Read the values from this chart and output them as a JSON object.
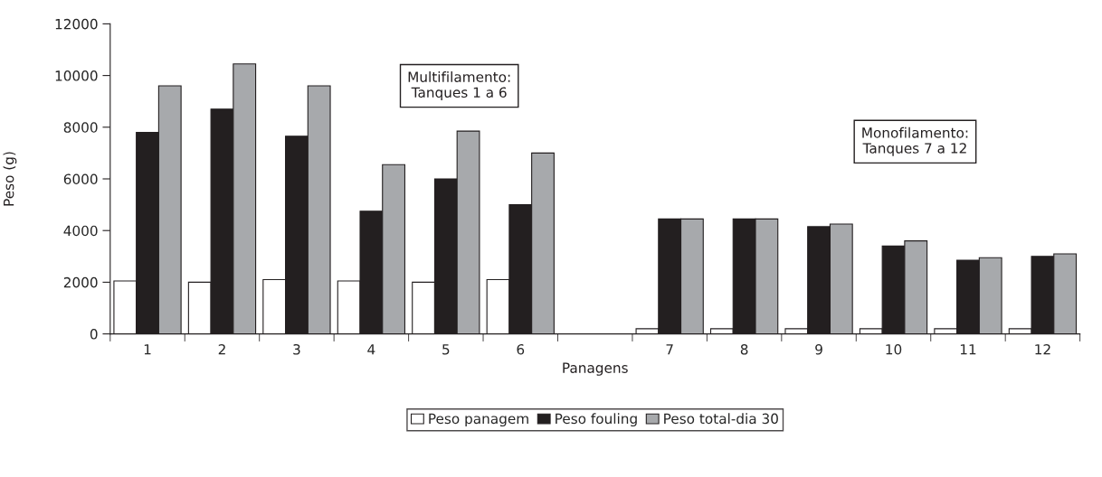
{
  "chart_data": {
    "type": "bar",
    "xlabel": "Panagens",
    "ylabel": "Peso (g)",
    "categories": [
      "1",
      "2",
      "3",
      "4",
      "5",
      "6",
      null,
      "7",
      "8",
      "9",
      "10",
      "11",
      "12"
    ],
    "series": [
      {
        "name": "Peso panagem",
        "color": "#ffffff",
        "values": [
          2050,
          2000,
          2100,
          2050,
          2000,
          2100,
          null,
          200,
          200,
          200,
          200,
          200,
          200
        ]
      },
      {
        "name": "Peso fouling",
        "color": "#231f20",
        "values": [
          7800,
          8700,
          7650,
          4750,
          6000,
          5000,
          null,
          4450,
          4450,
          4150,
          3400,
          2850,
          3000
        ]
      },
      {
        "name": "Peso total-dia 30",
        "color": "#a7a9ac",
        "values": [
          9600,
          10450,
          9600,
          6550,
          7850,
          7000,
          null,
          4450,
          4450,
          4250,
          3600,
          2950,
          3100
        ]
      }
    ],
    "ylim": [
      0,
      12000
    ],
    "yticks": [
      0,
      2000,
      4000,
      6000,
      8000,
      10000,
      12000
    ],
    "annotations": [
      "Multifilamento:\nTanques 1 a 6",
      "Monofilamento:\nTanques 7 a 12"
    ],
    "grid": false,
    "legend": "bottom"
  }
}
